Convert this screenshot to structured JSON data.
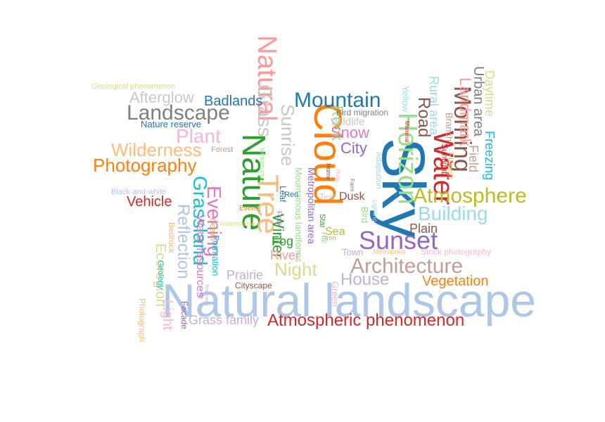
{
  "words": [
    {
      "text": "Sky",
      "color": "#1f77b4"
    },
    {
      "text": "Natural landscape",
      "color": "#aec7e8"
    },
    {
      "text": "Cloud",
      "color": "#ff7f0e"
    },
    {
      "text": "Nature",
      "color": "#2ca02c"
    },
    {
      "text": "Tree",
      "color": "#ffbb78"
    },
    {
      "text": "Natural",
      "color": "#ff9896"
    },
    {
      "text": "Water",
      "color": "#d62728"
    },
    {
      "text": "Horizon",
      "color": "#98df8a"
    },
    {
      "text": "Morning",
      "color": "#8c564b"
    },
    {
      "text": "Sunset",
      "color": "#9467bd"
    },
    {
      "text": "Architecture",
      "color": "#c49c94"
    },
    {
      "text": "Atmosphere",
      "color": "#bcbd22"
    },
    {
      "text": "Atmospheric phenomenon",
      "color": "#d62728"
    },
    {
      "text": "Landscape",
      "color": "#7f7f7f"
    },
    {
      "text": "Mountain",
      "color": "#1f77b4"
    },
    {
      "text": "Photography",
      "color": "#ff7f0e"
    },
    {
      "text": "Wilderness",
      "color": "#ffbb78"
    },
    {
      "text": "Grassland",
      "color": "#17becf"
    },
    {
      "text": "Evening",
      "color": "#e377c2"
    },
    {
      "text": "Grass",
      "color": "#c7c7c7"
    },
    {
      "text": "Sunrise",
      "color": "#c7c7c7"
    },
    {
      "text": "Building",
      "color": "#9edae5"
    },
    {
      "text": "Reflection",
      "color": "#aec7e8"
    },
    {
      "text": "Plant",
      "color": "#f7b6d2"
    },
    {
      "text": "Landmark",
      "color": "#ff9896"
    },
    {
      "text": "Urban area",
      "color": "#7f7f7f"
    },
    {
      "text": "Rural area",
      "color": "#9edae5"
    },
    {
      "text": "Road",
      "color": "#8c564b"
    },
    {
      "text": "Daytime",
      "color": "#dbdb8d"
    },
    {
      "text": "Freezing",
      "color": "#17becf"
    },
    {
      "text": "Field",
      "color": "#c49c94"
    },
    {
      "text": "Rock",
      "color": "#98df8a"
    },
    {
      "text": "Snow",
      "color": "#e377c2"
    },
    {
      "text": "City",
      "color": "#9467bd"
    },
    {
      "text": "Night",
      "color": "#dbdb8d"
    },
    {
      "text": "House",
      "color": "#c5b0d5"
    },
    {
      "text": "Winter",
      "color": "#2ca02c"
    },
    {
      "text": "Afterglow",
      "color": "#c7c7c7"
    },
    {
      "text": "Badlands",
      "color": "#1f77b4"
    },
    {
      "text": "Ecoregion",
      "color": "#dbdb8d"
    },
    {
      "text": "Light",
      "color": "#f7b6d2"
    },
    {
      "text": "Vehicle",
      "color": "#d62728"
    },
    {
      "text": "Vegetation",
      "color": "#ff7f0e"
    },
    {
      "text": "Grass family",
      "color": "#c5b0d5"
    },
    {
      "text": "Plain",
      "color": "#8c564b"
    },
    {
      "text": "Fog",
      "color": "#2ca02c"
    },
    {
      "text": "River",
      "color": "#ff9896"
    },
    {
      "text": "Prairie",
      "color": "#c5b0d5"
    },
    {
      "text": "Water resources",
      "color": "#e377c2"
    },
    {
      "text": "Dusk",
      "color": "#8c564b"
    },
    {
      "text": "Sea",
      "color": "#bcbd22"
    },
    {
      "text": "Wildlife",
      "color": "#c7c7c7"
    },
    {
      "text": "Nature reserve",
      "color": "#1f77b4"
    },
    {
      "text": "Geological phenomenon",
      "color": "#dbdb8d"
    },
    {
      "text": "Black-and-white",
      "color": "#aec7e8"
    },
    {
      "text": "Bird migration",
      "color": "#7f7f7f"
    },
    {
      "text": "Forest",
      "color": "#c49c94"
    },
    {
      "text": "Cityscape",
      "color": "#8c564b"
    },
    {
      "text": "Town",
      "color": "#c5b0d5"
    },
    {
      "text": "Metropolis",
      "color": "#ffbb78"
    },
    {
      "text": "Stock photography",
      "color": "#f7b6d2"
    },
    {
      "text": "Text",
      "color": "#c7c7c7"
    },
    {
      "text": "Event",
      "color": "#ff7f0e"
    },
    {
      "text": "Leaf",
      "color": "#1f77b4"
    },
    {
      "text": "Red",
      "color": "#1f77b4"
    },
    {
      "text": "Iron",
      "color": "#c49c94"
    },
    {
      "text": "Star",
      "color": "#2ca02c"
    },
    {
      "text": "Hill",
      "color": "#98df8a"
    },
    {
      "text": "Geology",
      "color": "#17becf"
    },
    {
      "text": "Facade",
      "color": "#9467bd"
    },
    {
      "text": "Photograph",
      "color": "#ffbb78"
    },
    {
      "text": "Green",
      "color": "#f7b6d2"
    },
    {
      "text": "Bird",
      "color": "#98df8a"
    },
    {
      "text": "Adaptation",
      "color": "#9edae5"
    },
    {
      "text": "Mammal",
      "color": "#d62728"
    },
    {
      "text": "Yellow",
      "color": "#9edae5"
    },
    {
      "text": "Sunlight",
      "color": "#d62728"
    },
    {
      "text": "Branch",
      "color": "#c49c94"
    },
    {
      "text": "Flower",
      "color": "#ffbb78"
    },
    {
      "text": "Lighting",
      "color": "#9edae5"
    },
    {
      "text": "Metropolitan area",
      "color": "#9467bd"
    },
    {
      "text": "Mountainous landforms",
      "color": "#98df8a"
    },
    {
      "text": "Ocean",
      "color": "#bcbd22"
    },
    {
      "text": "Formation",
      "color": "#17becf"
    },
    {
      "text": "Infrastructure",
      "color": "#98df8a"
    },
    {
      "text": "Home",
      "color": "#8c564b"
    },
    {
      "text": "Bedrock",
      "color": "#ffbb78"
    },
    {
      "text": "Waterway",
      "color": "#c5b0d5"
    },
    {
      "text": "Hues",
      "color": "#f7b6d2"
    },
    {
      "text": "Farm",
      "color": "#7f7f7f"
    },
    {
      "text": "Watercourse",
      "color": "#dbdb8d"
    },
    {
      "text": "Flock",
      "color": "#9467bd"
    }
  ]
}
